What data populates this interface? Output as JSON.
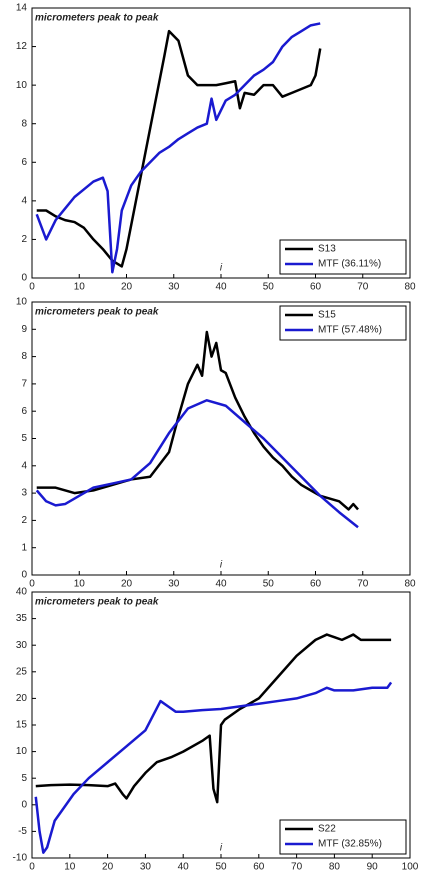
{
  "chart_data": [
    {
      "type": "line",
      "annotation": "micrometers peak to peak",
      "xlabel": "i",
      "xlim": [
        0,
        80
      ],
      "xticks": [
        0,
        10,
        20,
        30,
        40,
        50,
        60,
        70,
        80
      ],
      "ylim": [
        0,
        14
      ],
      "yticks": [
        0,
        2,
        4,
        6,
        8,
        10,
        12,
        14
      ],
      "legend": "lower right",
      "series": [
        {
          "name": "S13",
          "color": "#000000",
          "x": [
            1,
            3,
            5,
            7,
            9,
            11,
            13,
            15,
            17,
            19,
            20,
            22,
            24,
            26,
            28,
            29,
            31,
            33,
            35,
            37,
            39,
            41,
            43,
            44,
            45,
            47,
            49,
            51,
            53,
            55,
            57,
            59,
            60,
            61
          ],
          "values": [
            3.5,
            3.5,
            3.2,
            3.0,
            2.9,
            2.6,
            2.0,
            1.5,
            0.9,
            0.6,
            1.5,
            4,
            6.5,
            9,
            11.5,
            12.8,
            12.3,
            10.5,
            10,
            10,
            10,
            10.1,
            10.2,
            8.8,
            9.6,
            9.5,
            10,
            10,
            9.4,
            9.6,
            9.8,
            10.0,
            10.5,
            11.9
          ]
        },
        {
          "name": "MTF (36.11%)",
          "color": "#1a1ad0",
          "x": [
            1,
            3,
            5,
            7,
            9,
            11,
            13,
            15,
            16,
            17,
            18,
            19,
            21,
            23,
            25,
            27,
            29,
            31,
            33,
            35,
            37,
            38,
            39,
            41,
            43,
            45,
            47,
            49,
            51,
            53,
            55,
            57,
            59,
            61
          ],
          "values": [
            3.3,
            2.0,
            3.0,
            3.6,
            4.2,
            4.6,
            5.0,
            5.2,
            4.5,
            0.3,
            1.5,
            3.5,
            4.8,
            5.5,
            6.0,
            6.5,
            6.8,
            7.2,
            7.5,
            7.8,
            8.0,
            9.3,
            8.2,
            9.2,
            9.5,
            10.0,
            10.5,
            10.8,
            11.2,
            12,
            12.5,
            12.8,
            13.1,
            13.2
          ]
        }
      ]
    },
    {
      "type": "line",
      "annotation": "micrometers peak to peak",
      "xlabel": "i",
      "xlim": [
        0,
        80
      ],
      "xticks": [
        0,
        10,
        20,
        30,
        40,
        50,
        60,
        70,
        80
      ],
      "ylim": [
        0,
        10
      ],
      "yticks": [
        0,
        1,
        2,
        3,
        4,
        5,
        6,
        7,
        8,
        9,
        10
      ],
      "legend": "upper right",
      "series": [
        {
          "name": "S15",
          "color": "#000000",
          "x": [
            1,
            5,
            9,
            13,
            17,
            21,
            25,
            29,
            31,
            33,
            35,
            36,
            37,
            38,
            39,
            40,
            41,
            43,
            45,
            47,
            49,
            51,
            53,
            55,
            57,
            59,
            61,
            63,
            65,
            67,
            68,
            69
          ],
          "values": [
            3.2,
            3.2,
            3.0,
            3.1,
            3.3,
            3.5,
            3.6,
            4.5,
            5.8,
            7,
            7.7,
            7.3,
            8.9,
            8.0,
            8.5,
            7.5,
            7.4,
            6.5,
            5.8,
            5.2,
            4.7,
            4.3,
            4.0,
            3.6,
            3.3,
            3.1,
            2.9,
            2.8,
            2.7,
            2.4,
            2.6,
            2.4
          ]
        },
        {
          "name": "MTF (57.48%)",
          "color": "#1a1ad0",
          "x": [
            1,
            3,
            5,
            7,
            10,
            13,
            17,
            21,
            25,
            29,
            33,
            37,
            41,
            45,
            49,
            53,
            57,
            61,
            65,
            69
          ],
          "values": [
            3.1,
            2.7,
            2.55,
            2.6,
            2.9,
            3.2,
            3.35,
            3.5,
            4.1,
            5.2,
            6.1,
            6.4,
            6.2,
            5.6,
            5.0,
            4.3,
            3.6,
            2.9,
            2.3,
            1.75
          ]
        }
      ]
    },
    {
      "type": "line",
      "annotation": "micrometers peak to peak",
      "xlabel": "i",
      "xlim": [
        0,
        100
      ],
      "xticks": [
        0,
        10,
        20,
        30,
        40,
        50,
        60,
        70,
        80,
        90,
        100
      ],
      "ylim": [
        -10,
        40
      ],
      "yticks": [
        -10,
        -5,
        0,
        5,
        10,
        15,
        20,
        25,
        30,
        35,
        40
      ],
      "legend": "lower right",
      "series": [
        {
          "name": "S22",
          "color": "#000000",
          "x": [
            1,
            5,
            10,
            15,
            20,
            22,
            24,
            25,
            27,
            30,
            33,
            37,
            40,
            45,
            47,
            48,
            49,
            50,
            51,
            55,
            60,
            65,
            70,
            75,
            78,
            80,
            82,
            85,
            87,
            90,
            95
          ],
          "values": [
            3.5,
            3.7,
            3.8,
            3.7,
            3.5,
            4,
            2,
            1.2,
            3.5,
            6,
            8,
            9,
            10,
            12,
            13,
            3,
            0.5,
            15,
            16,
            18,
            20,
            24,
            28,
            31,
            32,
            31.5,
            31,
            32,
            31,
            31,
            31
          ]
        },
        {
          "name": "MTF (32.85%)",
          "color": "#1a1ad0",
          "x": [
            1,
            2,
            3,
            4,
            6,
            8,
            11,
            15,
            20,
            25,
            30,
            34,
            36,
            38,
            40,
            45,
            50,
            55,
            60,
            65,
            70,
            75,
            78,
            80,
            85,
            90,
            94,
            95
          ],
          "values": [
            1.5,
            -5,
            -9,
            -8,
            -3,
            -1,
            2,
            5,
            8,
            11,
            14,
            19.5,
            18.5,
            17.5,
            17.5,
            17.8,
            18,
            18.5,
            19,
            19.5,
            20,
            21,
            22,
            21.5,
            21.5,
            22,
            22,
            23
          ]
        }
      ]
    }
  ]
}
